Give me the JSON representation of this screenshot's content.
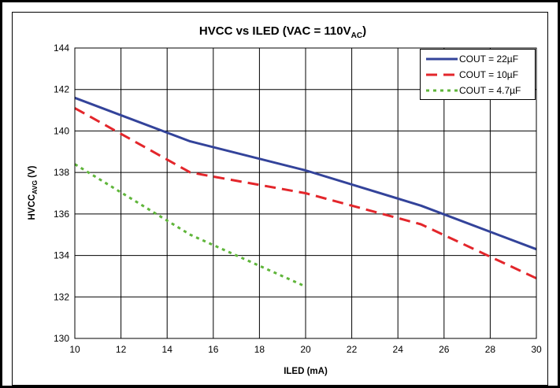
{
  "chart_data": {
    "type": "line",
    "title": "HVCC vs ILED (VAC = 110VAC)",
    "title_main": "HVCC vs ILED (VAC = 110V",
    "title_sub": "AC",
    "title_end": ")",
    "xlabel": "ILED (mA)",
    "ylabel": "HVCCAVG (V)",
    "ylabel_main": "HVCC",
    "ylabel_sub": "AVG",
    "ylabel_end": " (V)",
    "xlim": [
      10,
      30
    ],
    "ylim": [
      130,
      144
    ],
    "xticks": [
      "10",
      "12",
      "14",
      "16",
      "18",
      "20",
      "22",
      "24",
      "26",
      "28",
      "30"
    ],
    "yticks": [
      "130",
      "132",
      "134",
      "136",
      "138",
      "140",
      "142",
      "144"
    ],
    "grid": true,
    "legend_position": "top-right",
    "series": [
      {
        "name": "COUT = 22µF",
        "color": "#33439a",
        "dash": "solid",
        "x": [
          10,
          15,
          20,
          25,
          30
        ],
        "y": [
          141.6,
          139.5,
          138.1,
          136.4,
          134.3
        ]
      },
      {
        "name": "COUT = 10µF",
        "color": "#e3262b",
        "dash": "dashed",
        "x": [
          10,
          15,
          20,
          25,
          30
        ],
        "y": [
          141.1,
          138.0,
          137.0,
          135.5,
          132.9
        ]
      },
      {
        "name": "COUT = 4.7µF",
        "color": "#5fb53a",
        "dash": "dotted",
        "x": [
          10,
          15,
          20
        ],
        "y": [
          138.4,
          135.0,
          132.5
        ]
      }
    ]
  }
}
